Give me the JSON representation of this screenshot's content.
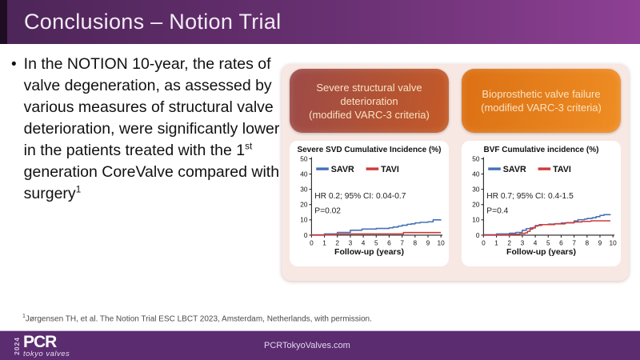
{
  "slide": {
    "title": "Conclusions – Notion Trial"
  },
  "bullet": {
    "marker": "•",
    "text_before_sup": "In the NOTION 10-year, the rates of valve degeneration, as assessed by various measures of structural valve deterioration, were significantly lower in the patients treated with the 1",
    "sup_ordinal": "st",
    "text_after_sup": " generation CoreValve compared with surgery",
    "sup_ref": "1"
  },
  "panels": [
    {
      "chip_title": "Severe structural valve deterioration",
      "chip_subtitle": "(modified VARC-3 criteria)"
    },
    {
      "chip_title": "Bioprosthetic valve failure",
      "chip_subtitle": "(modified VARC-3 criteria)"
    }
  ],
  "chart_data": [
    {
      "type": "line",
      "title": "Severe SVD Cumulative Incidence (%)",
      "xlabel": "Follow-up (years)",
      "xlim": [
        0,
        10
      ],
      "ylim": [
        0,
        50
      ],
      "xticks": [
        0,
        1,
        2,
        3,
        4,
        5,
        6,
        7,
        8,
        9,
        10
      ],
      "yticks": [
        0,
        10,
        20,
        30,
        40,
        50
      ],
      "grid": false,
      "legend_position": "top-left-inside",
      "annotation": [
        "HR 0.2; 95% CI: 0.04-0.7",
        "P=0.02"
      ],
      "series": [
        {
          "name": "SAVR",
          "color": "#4470b8",
          "step_points": [
            [
              0,
              0
            ],
            [
              1,
              0.8
            ],
            [
              2,
              1.8
            ],
            [
              3,
              3.2
            ],
            [
              3.9,
              4.0
            ],
            [
              5,
              4.4
            ],
            [
              6,
              4.8
            ],
            [
              6.3,
              5.3
            ],
            [
              6.7,
              5.9
            ],
            [
              7,
              6.5
            ],
            [
              7.4,
              7.1
            ],
            [
              7.7,
              7.4
            ],
            [
              8,
              8.0
            ],
            [
              8.4,
              8.4
            ],
            [
              9,
              8.7
            ],
            [
              9.4,
              10.0
            ],
            [
              10,
              10.2
            ]
          ]
        },
        {
          "name": "TAVI",
          "color": "#cf3a36",
          "step_points": [
            [
              0,
              0.2
            ],
            [
              1.9,
              0.8
            ],
            [
              7.1,
              1.7
            ],
            [
              10,
              1.7
            ]
          ]
        }
      ]
    },
    {
      "type": "line",
      "title": "BVF Cumulative incidence (%)",
      "xlabel": "Follow-up (years)",
      "xlim": [
        0,
        10
      ],
      "ylim": [
        0,
        50
      ],
      "xticks": [
        0,
        1,
        2,
        3,
        4,
        5,
        6,
        7,
        8,
        9,
        10
      ],
      "yticks": [
        0,
        10,
        20,
        30,
        40,
        50
      ],
      "grid": false,
      "legend_position": "top-left-inside",
      "annotation": [
        "HR 0.7; 95% CI: 0.4-1.5",
        "P=0.4"
      ],
      "series": [
        {
          "name": "SAVR",
          "color": "#4470b8",
          "step_points": [
            [
              0,
              0.3
            ],
            [
              1,
              0.8
            ],
            [
              2,
              1.3
            ],
            [
              2.5,
              1.8
            ],
            [
              3,
              3.2
            ],
            [
              3.3,
              4.3
            ],
            [
              3.6,
              4.7
            ],
            [
              4,
              6.3
            ],
            [
              4.3,
              6.9
            ],
            [
              5,
              7.2
            ],
            [
              5.5,
              7.5
            ],
            [
              6,
              7.9
            ],
            [
              6.4,
              8.2
            ],
            [
              7,
              9.3
            ],
            [
              7.3,
              10.1
            ],
            [
              7.8,
              10.5
            ],
            [
              8,
              10.9
            ],
            [
              8.4,
              11.4
            ],
            [
              8.7,
              12.1
            ],
            [
              9,
              12.9
            ],
            [
              9.3,
              13.4
            ],
            [
              9.8,
              13.5
            ]
          ]
        },
        {
          "name": "TAVI",
          "color": "#cf3a36",
          "step_points": [
            [
              0,
              0
            ],
            [
              2,
              0.5
            ],
            [
              2.8,
              1.0
            ],
            [
              3.2,
              1.5
            ],
            [
              3.4,
              2.5
            ],
            [
              3.6,
              4.0
            ],
            [
              3.8,
              5.0
            ],
            [
              4,
              5.9
            ],
            [
              4.2,
              6.4
            ],
            [
              4.5,
              6.9
            ],
            [
              5.5,
              7.4
            ],
            [
              6.3,
              8.0
            ],
            [
              7,
              8.6
            ],
            [
              7.6,
              9.0
            ],
            [
              8.3,
              9.4
            ],
            [
              9.8,
              9.4
            ]
          ]
        }
      ]
    }
  ],
  "footer": {
    "citation_sup": "1",
    "citation": "Jørgensen TH, et al. The Notion Trial ESC LBCT 2023, Amsterdam, Netherlands, with permission."
  },
  "footer_bar": {
    "year": "2024",
    "logo": "PCR",
    "logo_subtitle": "tokyo valves",
    "website": "PCRTokyoValves.com"
  },
  "colors": {
    "header_gradient_start": "#4d2558",
    "header_gradient_end": "#8e4094",
    "header_edge": "#1f0d24",
    "footer_bar_bg": "#5b2c70",
    "panel_bg": "#f7e8e3",
    "chip_left_start": "#9c4a48",
    "chip_left_end": "#c45a27",
    "chip_right_start": "#db7014",
    "chip_right_end": "#ef8d23",
    "savr_blue": "#4470b8",
    "tavi_red": "#cf3a36"
  }
}
